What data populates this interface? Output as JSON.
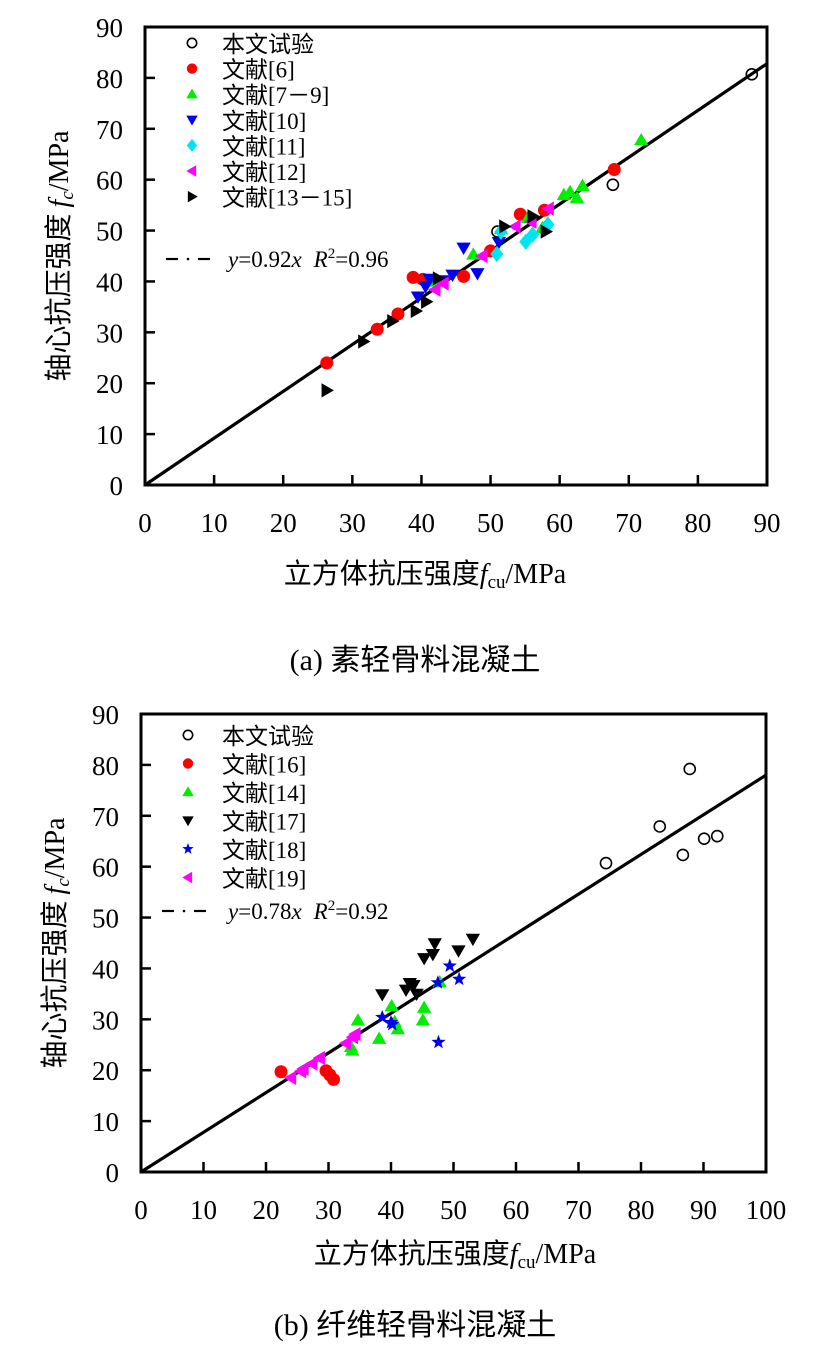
{
  "chart_data": [
    {
      "type": "scatter",
      "caption": "(a)  素轻骨料混凝土",
      "xlabel_prefix": "立方体抗压强度",
      "xlabel_var": "f",
      "xlabel_sub": "cu",
      "xlabel_unit": "/MPa",
      "ylabel_prefix": "轴心抗压强度",
      "ylabel_var": "f",
      "ylabel_sub": "c",
      "ylabel_unit": "/MPa",
      "xlim": [
        0,
        90
      ],
      "ylim": [
        0,
        90
      ],
      "xticks": [
        "0",
        "10",
        "20",
        "30",
        "40",
        "50",
        "60",
        "70",
        "80",
        "90"
      ],
      "yticks": [
        "0",
        "10",
        "20",
        "30",
        "40",
        "50",
        "60",
        "70",
        "80",
        "90"
      ],
      "legend_position": "top-left",
      "fit": {
        "slope": 0.92,
        "label_y": "y",
        "label_eq": "=0.92",
        "label_x": "x",
        "label_r": "R",
        "label_r_exp": "2",
        "label_r_val": "=0.96"
      },
      "series": [
        {
          "name": "本文试验",
          "marker": "circle-open",
          "color": "#000000",
          "points": [
            [
              87.8,
              80.7
            ],
            [
              67.7,
              59
            ],
            [
              51,
              49.8
            ]
          ]
        },
        {
          "name": "文献[6]",
          "marker": "circle",
          "color": "#ff0000",
          "points": [
            [
              26.3,
              24
            ],
            [
              33.6,
              30.6
            ],
            [
              36.6,
              33.6
            ],
            [
              38.8,
              40.8
            ],
            [
              40.2,
              40.4
            ],
            [
              46.1,
              41
            ],
            [
              50,
              46
            ],
            [
              54.3,
              53.2
            ],
            [
              57.8,
              54
            ],
            [
              67.9,
              62
            ]
          ]
        },
        {
          "name": "文献[7－9]",
          "marker": "triangle-up",
          "color": "#00ee00",
          "points": [
            [
              60.6,
              57
            ],
            [
              61.5,
              57.6
            ],
            [
              62.5,
              56.4
            ],
            [
              63.3,
              58.8
            ],
            [
              71.8,
              67.8
            ],
            [
              41.6,
              40
            ],
            [
              51.5,
              50.3
            ],
            [
              57.5,
              50.5
            ],
            [
              55.4,
              52.5
            ],
            [
              47.5,
              45.3
            ]
          ]
        },
        {
          "name": "文献[10]",
          "marker": "triangle-down",
          "color": "#0000ee",
          "points": [
            [
              46.1,
              46.6
            ],
            [
              39.5,
              37
            ],
            [
              40.6,
              39
            ],
            [
              44.5,
              41.3
            ],
            [
              48.1,
              41.6
            ],
            [
              51.2,
              47.7
            ],
            [
              41.2,
              40.5
            ],
            [
              43.1,
              40.2
            ]
          ]
        },
        {
          "name": "文献[11]",
          "marker": "diamond",
          "color": "#00e5ee",
          "points": [
            [
              50.9,
              45.4
            ],
            [
              55.1,
              47.8
            ],
            [
              56.1,
              49.2
            ],
            [
              58.3,
              51.2
            ],
            [
              51.5,
              49.8
            ]
          ]
        },
        {
          "name": "文献[12]",
          "marker": "triangle-left",
          "color": "#ff00ff",
          "points": [
            [
              42,
              38.4
            ],
            [
              43.2,
              39.6
            ],
            [
              48.8,
              45
            ],
            [
              55.9,
              51.7
            ],
            [
              58.4,
              54.3
            ],
            [
              53.6,
              50.8
            ]
          ]
        },
        {
          "name": "文献[13－15]",
          "marker": "triangle-right",
          "color": "#000000",
          "points": [
            [
              26.3,
              18.6
            ],
            [
              31.6,
              28.2
            ],
            [
              35.8,
              32.2
            ],
            [
              39.2,
              34.2
            ],
            [
              40.7,
              36
            ],
            [
              42.4,
              40.6
            ],
            [
              52,
              50.8
            ],
            [
              56.1,
              52.8
            ],
            [
              58,
              49.8
            ]
          ]
        }
      ]
    },
    {
      "type": "scatter",
      "caption": "(b)  纤维轻骨料混凝土",
      "xlabel_prefix": "立方体抗压强度",
      "xlabel_var": "f",
      "xlabel_sub": "cu",
      "xlabel_unit": "/MPa",
      "ylabel_prefix": "轴心抗压强度",
      "ylabel_var": "f",
      "ylabel_sub": "c",
      "ylabel_unit": "/MPa",
      "xlim": [
        0,
        100
      ],
      "ylim": [
        0,
        90
      ],
      "xticks": [
        "0",
        "10",
        "20",
        "30",
        "40",
        "50",
        "60",
        "70",
        "80",
        "90",
        "100"
      ],
      "yticks": [
        "0",
        "10",
        "20",
        "30",
        "40",
        "50",
        "60",
        "70",
        "80",
        "90"
      ],
      "legend_position": "top-left",
      "fit": {
        "slope": 0.78,
        "label_y": "y",
        "label_eq": "=0.78",
        "label_x": "x",
        "label_r": "R",
        "label_r_exp": "2",
        "label_r_val": "=0.92"
      },
      "series": [
        {
          "name": "本文试验",
          "marker": "circle-open",
          "color": "#000000",
          "points": [
            [
              74.4,
              60.7
            ],
            [
              83,
              67.9
            ],
            [
              87.8,
              79.2
            ],
            [
              86.7,
              62.3
            ],
            [
              90.1,
              65.5
            ],
            [
              92.2,
              66
            ]
          ]
        },
        {
          "name": "文献[16]",
          "marker": "circle",
          "color": "#ff0000",
          "points": [
            [
              22.4,
              19.7
            ],
            [
              29.6,
              19.9
            ],
            [
              30.2,
              19.1
            ],
            [
              30.8,
              18.2
            ]
          ]
        },
        {
          "name": "文献[14]",
          "marker": "triangle-up",
          "color": "#00ee00",
          "points": [
            [
              34.7,
              29.8
            ],
            [
              33.6,
              24.6
            ],
            [
              33.8,
              23.9
            ],
            [
              38.1,
              26.2
            ],
            [
              40.1,
              32.6
            ],
            [
              41.1,
              28.1
            ],
            [
              45.3,
              32.3
            ],
            [
              45.1,
              29.8
            ],
            [
              47.8,
              37.3
            ],
            [
              40.6,
              29.5
            ]
          ]
        },
        {
          "name": "文献[17]",
          "marker": "triangle-down",
          "color": "#000000",
          "points": [
            [
              38.6,
              34.9
            ],
            [
              43,
              37.1
            ],
            [
              42.4,
              35.8
            ],
            [
              45.3,
              42
            ],
            [
              47,
              44.9
            ],
            [
              46.7,
              42.8
            ],
            [
              50.8,
              43.5
            ],
            [
              53.1,
              45.8
            ],
            [
              44.1,
              35
            ],
            [
              43.6,
              36.7
            ]
          ]
        },
        {
          "name": "文献[18]",
          "marker": "star",
          "color": "#0000ee",
          "points": [
            [
              38.6,
              30.4
            ],
            [
              40.2,
              29
            ],
            [
              47.5,
              37.2
            ],
            [
              49.4,
              40.5
            ],
            [
              50.9,
              37.9
            ],
            [
              47.6,
              25.5
            ],
            [
              40,
              29.4
            ]
          ]
        },
        {
          "name": "文献[19]",
          "marker": "triangle-left",
          "color": "#ff00ff",
          "points": [
            [
              24,
              18.5
            ],
            [
              25.6,
              19.8
            ],
            [
              27.4,
              21.3
            ],
            [
              28.6,
              22.4
            ],
            [
              32.8,
              25.3
            ],
            [
              33.9,
              26.5
            ],
            [
              34.3,
              27.1
            ],
            [
              26,
              20.3
            ]
          ]
        }
      ]
    }
  ]
}
